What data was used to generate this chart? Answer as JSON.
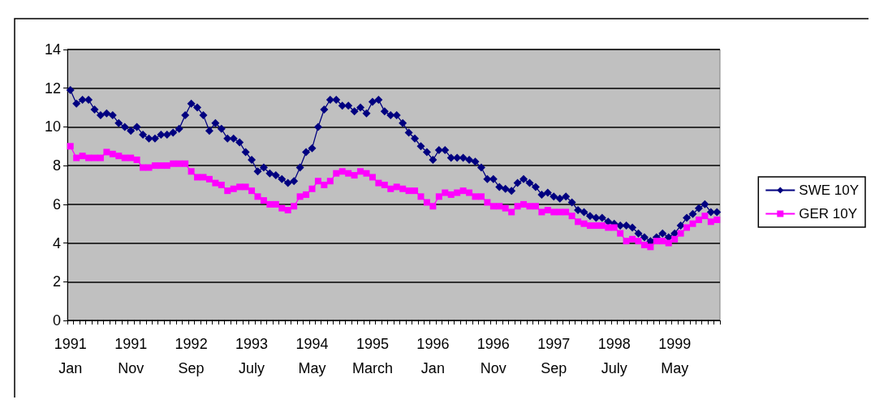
{
  "chart_data": {
    "type": "line",
    "categories": [
      "1991 Jan",
      null,
      null,
      null,
      null,
      null,
      null,
      null,
      null,
      null,
      "1991 Nov",
      null,
      null,
      null,
      null,
      null,
      null,
      null,
      null,
      null,
      "1992 Sep",
      null,
      null,
      null,
      null,
      null,
      null,
      null,
      null,
      null,
      "1993 July",
      null,
      null,
      null,
      null,
      null,
      null,
      null,
      null,
      null,
      "1994 May",
      null,
      null,
      null,
      null,
      null,
      null,
      null,
      null,
      null,
      "1995 March",
      null,
      null,
      null,
      null,
      null,
      null,
      null,
      null,
      null,
      "1996 Jan",
      null,
      null,
      null,
      null,
      null,
      null,
      null,
      null,
      null,
      "1996 Nov",
      null,
      null,
      null,
      null,
      null,
      null,
      null,
      null,
      null,
      "1997 Sep",
      null,
      null,
      null,
      null,
      null,
      null,
      null,
      null,
      null,
      "1998 July",
      null,
      null,
      null,
      null,
      null,
      null,
      null,
      null,
      null,
      "1999 May",
      null,
      null,
      null,
      null,
      null,
      null,
      null
    ],
    "series": [
      {
        "name": "SWE 10Y",
        "color": "#000080",
        "marker": "diamond",
        "values": [
          11.9,
          11.2,
          11.4,
          11.4,
          10.9,
          10.6,
          10.7,
          10.6,
          10.2,
          10.0,
          9.8,
          10.0,
          9.6,
          9.4,
          9.4,
          9.6,
          9.6,
          9.7,
          9.9,
          10.6,
          11.2,
          11.0,
          10.6,
          9.8,
          10.2,
          9.9,
          9.4,
          9.4,
          9.2,
          8.7,
          8.3,
          7.7,
          7.9,
          7.6,
          7.5,
          7.3,
          7.1,
          7.2,
          7.9,
          8.7,
          8.9,
          10.0,
          10.9,
          11.4,
          11.4,
          11.1,
          11.1,
          10.8,
          11.0,
          10.7,
          11.3,
          11.4,
          10.8,
          10.6,
          10.6,
          10.2,
          9.7,
          9.4,
          9.0,
          8.7,
          8.3,
          8.8,
          8.8,
          8.4,
          8.4,
          8.4,
          8.3,
          8.2,
          7.9,
          7.3,
          7.3,
          6.9,
          6.8,
          6.7,
          7.1,
          7.3,
          7.1,
          6.9,
          6.5,
          6.6,
          6.4,
          6.3,
          6.4,
          6.1,
          5.7,
          5.6,
          5.4,
          5.3,
          5.3,
          5.1,
          5.0,
          4.9,
          4.9,
          4.8,
          4.5,
          4.3,
          4.1,
          4.3,
          4.5,
          4.3,
          4.5,
          4.9,
          5.3,
          5.5,
          5.8,
          6.0,
          5.6,
          5.6
        ]
      },
      {
        "name": "GER 10Y",
        "color": "#ff00ff",
        "marker": "square",
        "values": [
          9.0,
          8.4,
          8.5,
          8.4,
          8.4,
          8.4,
          8.7,
          8.6,
          8.5,
          8.4,
          8.4,
          8.3,
          7.9,
          7.9,
          8.0,
          8.0,
          8.0,
          8.1,
          8.1,
          8.1,
          7.7,
          7.4,
          7.4,
          7.3,
          7.1,
          7.0,
          6.7,
          6.8,
          6.9,
          6.9,
          6.7,
          6.4,
          6.2,
          6.0,
          6.0,
          5.8,
          5.7,
          5.9,
          6.4,
          6.5,
          6.8,
          7.2,
          7.0,
          7.2,
          7.6,
          7.7,
          7.6,
          7.5,
          7.7,
          7.6,
          7.4,
          7.1,
          7.0,
          6.8,
          6.9,
          6.8,
          6.7,
          6.7,
          6.4,
          6.1,
          5.9,
          6.4,
          6.6,
          6.5,
          6.6,
          6.7,
          6.6,
          6.4,
          6.4,
          6.1,
          5.9,
          5.9,
          5.8,
          5.6,
          5.9,
          6.0,
          5.9,
          5.9,
          5.6,
          5.7,
          5.6,
          5.6,
          5.6,
          5.4,
          5.1,
          5.0,
          4.9,
          4.9,
          4.9,
          4.8,
          4.8,
          4.5,
          4.1,
          4.2,
          4.1,
          3.9,
          3.8,
          4.1,
          4.1,
          4.0,
          4.2,
          4.5,
          4.8,
          5.0,
          5.2,
          5.4,
          5.1,
          5.2
        ]
      }
    ],
    "ylim": [
      0,
      14
    ],
    "yticks": [
      0,
      2,
      4,
      6,
      8,
      10,
      12,
      14
    ],
    "grid": "y",
    "legend": "right"
  }
}
